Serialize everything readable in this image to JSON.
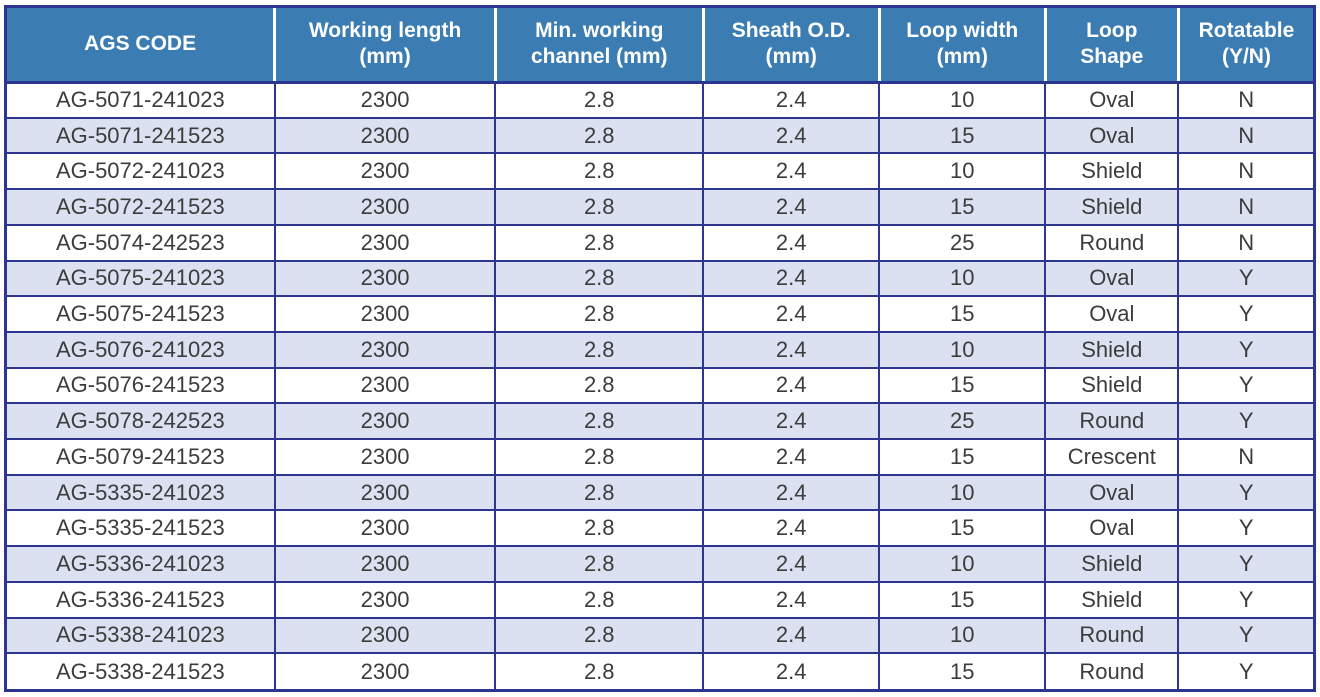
{
  "table": {
    "columns": [
      {
        "key": "ags_code",
        "label": "AGS CODE"
      },
      {
        "key": "working_length_mm",
        "label": "Working length\n(mm)"
      },
      {
        "key": "min_working_channel_mm",
        "label": "Min. working\nchannel (mm)"
      },
      {
        "key": "sheath_od_mm",
        "label": "Sheath O.D.\n(mm)"
      },
      {
        "key": "loop_width_mm",
        "label": "Loop width\n(mm)"
      },
      {
        "key": "loop_shape",
        "label": "Loop\nShape"
      },
      {
        "key": "rotatable_yn",
        "label": "Rotatable\n(Y/N)"
      }
    ],
    "rows": [
      [
        "AG-5071-241023",
        "2300",
        "2.8",
        "2.4",
        "10",
        "Oval",
        "N"
      ],
      [
        "AG-5071-241523",
        "2300",
        "2.8",
        "2.4",
        "15",
        "Oval",
        "N"
      ],
      [
        "AG-5072-241023",
        "2300",
        "2.8",
        "2.4",
        "10",
        "Shield",
        "N"
      ],
      [
        "AG-5072-241523",
        "2300",
        "2.8",
        "2.4",
        "15",
        "Shield",
        "N"
      ],
      [
        "AG-5074-242523",
        "2300",
        "2.8",
        "2.4",
        "25",
        "Round",
        "N"
      ],
      [
        "AG-5075-241023",
        "2300",
        "2.8",
        "2.4",
        "10",
        "Oval",
        "Y"
      ],
      [
        "AG-5075-241523",
        "2300",
        "2.8",
        "2.4",
        "15",
        "Oval",
        "Y"
      ],
      [
        "AG-5076-241023",
        "2300",
        "2.8",
        "2.4",
        "10",
        "Shield",
        "Y"
      ],
      [
        "AG-5076-241523",
        "2300",
        "2.8",
        "2.4",
        "15",
        "Shield",
        "Y"
      ],
      [
        "AG-5078-242523",
        "2300",
        "2.8",
        "2.4",
        "25",
        "Round",
        "Y"
      ],
      [
        "AG-5079-241523",
        "2300",
        "2.8",
        "2.4",
        "15",
        "Crescent",
        "N"
      ],
      [
        "AG-5335-241023",
        "2300",
        "2.8",
        "2.4",
        "10",
        "Oval",
        "Y"
      ],
      [
        "AG-5335-241523",
        "2300",
        "2.8",
        "2.4",
        "15",
        "Oval",
        "Y"
      ],
      [
        "AG-5336-241023",
        "2300",
        "2.8",
        "2.4",
        "10",
        "Shield",
        "Y"
      ],
      [
        "AG-5336-241523",
        "2300",
        "2.8",
        "2.4",
        "15",
        "Shield",
        "Y"
      ],
      [
        "AG-5338-241023",
        "2300",
        "2.8",
        "2.4",
        "10",
        "Round",
        "Y"
      ],
      [
        "AG-5338-241523",
        "2300",
        "2.8",
        "2.4",
        "15",
        "Round",
        "Y"
      ]
    ]
  },
  "colors": {
    "header_bg": "#3B7CB3",
    "border": "#2E3590",
    "row_alt_bg": "#DBE1F0",
    "row_bg": "#FFFFFF",
    "header_text": "#FFFFFF",
    "body_text": "#3C3C3C"
  }
}
